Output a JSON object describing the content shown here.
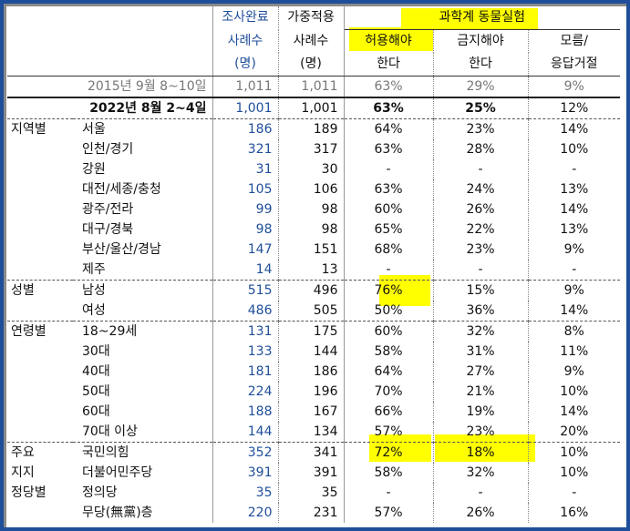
{
  "header": {
    "top": {
      "col_n": "조사완료",
      "col_w": "가중적용",
      "group": "과학계 동물실험"
    },
    "mid": {
      "col_n": "사례수",
      "col_w": "사례수",
      "allow": "허용해야",
      "ban": "금지해야",
      "unknown": "모름/"
    },
    "bot": {
      "col_n": "(명)",
      "col_w": "(명)",
      "allow": "한다",
      "ban": "한다",
      "unknown": "응답거절"
    }
  },
  "rows": [
    {
      "grp": "",
      "sub": "2015년 9월 8~10일",
      "n": "1,011",
      "w": "1,011",
      "allow": "63%",
      "ban": "29%",
      "unk": "9%",
      "style": "gray"
    },
    {
      "grp": "",
      "sub": "2022년 8월 2~4일",
      "n": "1,001",
      "w": "1,001",
      "allow": "63%",
      "ban": "25%",
      "unk": "12%",
      "style": "bold"
    },
    {
      "grp": "지역별",
      "sub": "서울",
      "n": "186",
      "w": "189",
      "allow": "64%",
      "ban": "23%",
      "unk": "14%"
    },
    {
      "grp": "",
      "sub": "인천/경기",
      "n": "321",
      "w": "317",
      "allow": "63%",
      "ban": "28%",
      "unk": "10%"
    },
    {
      "grp": "",
      "sub": "강원",
      "n": "31",
      "w": "30",
      "allow": "-",
      "ban": "-",
      "unk": "-"
    },
    {
      "grp": "",
      "sub": "대전/세종/충청",
      "n": "105",
      "w": "106",
      "allow": "63%",
      "ban": "24%",
      "unk": "13%"
    },
    {
      "grp": "",
      "sub": "광주/전라",
      "n": "99",
      "w": "98",
      "allow": "60%",
      "ban": "26%",
      "unk": "14%"
    },
    {
      "grp": "",
      "sub": "대구/경북",
      "n": "98",
      "w": "98",
      "allow": "65%",
      "ban": "22%",
      "unk": "13%"
    },
    {
      "grp": "",
      "sub": "부산/울산/경남",
      "n": "147",
      "w": "151",
      "allow": "68%",
      "ban": "23%",
      "unk": "9%"
    },
    {
      "grp": "",
      "sub": "제주",
      "n": "14",
      "w": "13",
      "allow": "-",
      "ban": "-",
      "unk": "-"
    },
    {
      "grp": "성별",
      "sub": "남성",
      "n": "515",
      "w": "496",
      "allow": "76%",
      "ban": "15%",
      "unk": "9%"
    },
    {
      "grp": "",
      "sub": "여성",
      "n": "486",
      "w": "505",
      "allow": "50%",
      "ban": "36%",
      "unk": "14%"
    },
    {
      "grp": "연령별",
      "sub": "18~29세",
      "n": "131",
      "w": "175",
      "allow": "60%",
      "ban": "32%",
      "unk": "8%"
    },
    {
      "grp": "",
      "sub": "30대",
      "n": "133",
      "w": "144",
      "allow": "58%",
      "ban": "31%",
      "unk": "11%"
    },
    {
      "grp": "",
      "sub": "40대",
      "n": "181",
      "w": "186",
      "allow": "64%",
      "ban": "27%",
      "unk": "9%"
    },
    {
      "grp": "",
      "sub": "50대",
      "n": "224",
      "w": "196",
      "allow": "70%",
      "ban": "21%",
      "unk": "10%"
    },
    {
      "grp": "",
      "sub": "60대",
      "n": "188",
      "w": "167",
      "allow": "66%",
      "ban": "19%",
      "unk": "14%"
    },
    {
      "grp": "",
      "sub": "70대 이상",
      "n": "144",
      "w": "134",
      "allow": "57%",
      "ban": "23%",
      "unk": "20%"
    },
    {
      "grp": "주요",
      "sub": "국민의힘",
      "n": "352",
      "w": "341",
      "allow": "72%",
      "ban": "18%",
      "unk": "10%"
    },
    {
      "grp": "지지",
      "sub": "더불어민주당",
      "n": "391",
      "w": "391",
      "allow": "58%",
      "ban": "32%",
      "unk": "10%"
    },
    {
      "grp": "정당별",
      "sub": "정의당",
      "n": "35",
      "w": "35",
      "allow": "-",
      "ban": "-",
      "unk": "-"
    },
    {
      "grp": "",
      "sub": "무당(無黨)층",
      "n": "220",
      "w": "231",
      "allow": "57%",
      "ban": "26%",
      "unk": "16%"
    }
  ],
  "colors": {
    "frame": "#1f4e9a",
    "blue_text": "#1f4e9a",
    "highlight": "#ffff00"
  }
}
